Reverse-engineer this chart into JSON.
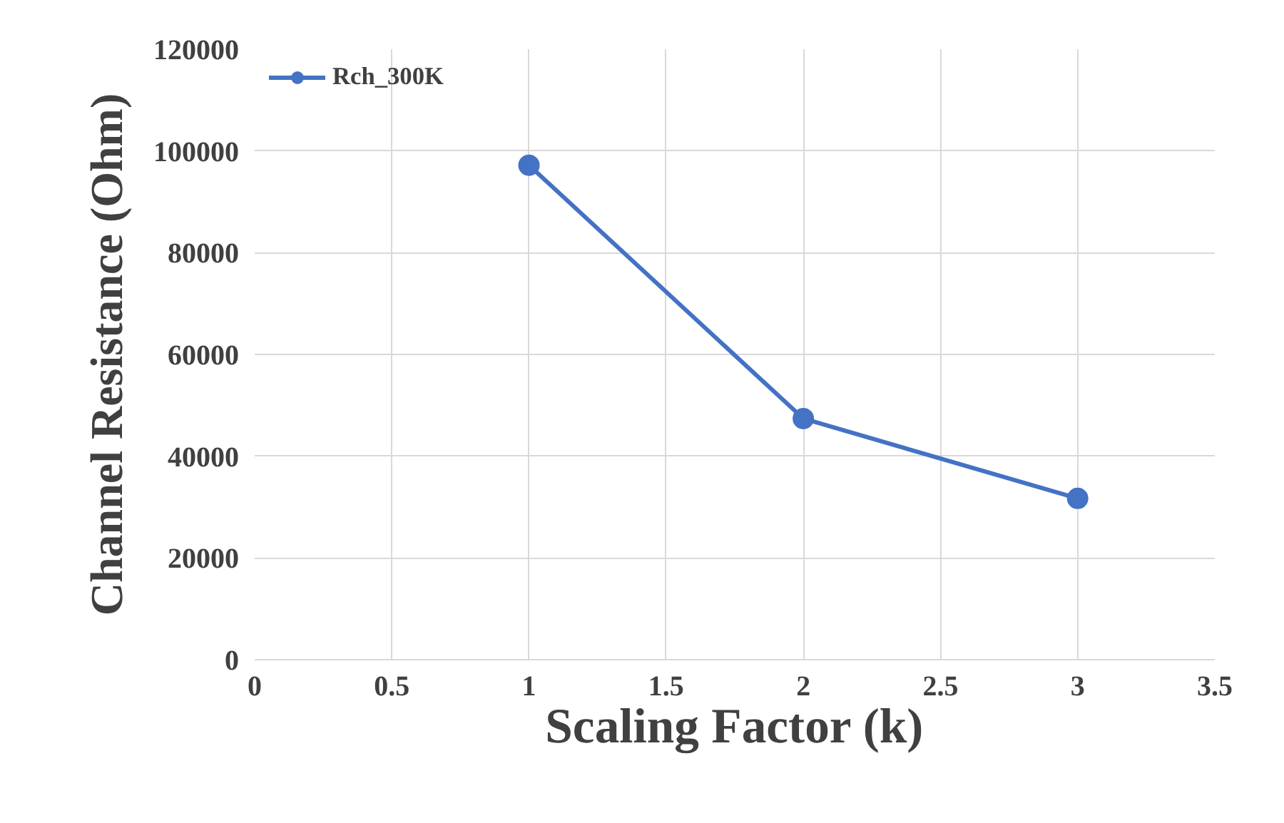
{
  "chart_data": {
    "type": "line",
    "xlabel": "Scaling Factor (k)",
    "ylabel": "Channel Resistance (Ohm)",
    "x": [
      1,
      2,
      3
    ],
    "series": [
      {
        "name": "Rch_300K",
        "color": "#4472c4",
        "values": [
          97200,
          47400,
          31700
        ]
      }
    ],
    "xlim": [
      0,
      3.5
    ],
    "xticks": [
      0,
      0.5,
      1,
      1.5,
      2,
      2.5,
      3,
      3.5
    ],
    "ylim": [
      0,
      120000
    ],
    "yticks": [
      0,
      20000,
      40000,
      60000,
      80000,
      100000,
      120000
    ],
    "grid": true,
    "legend": "top left",
    "marker": "circle",
    "line_style": "solid"
  }
}
